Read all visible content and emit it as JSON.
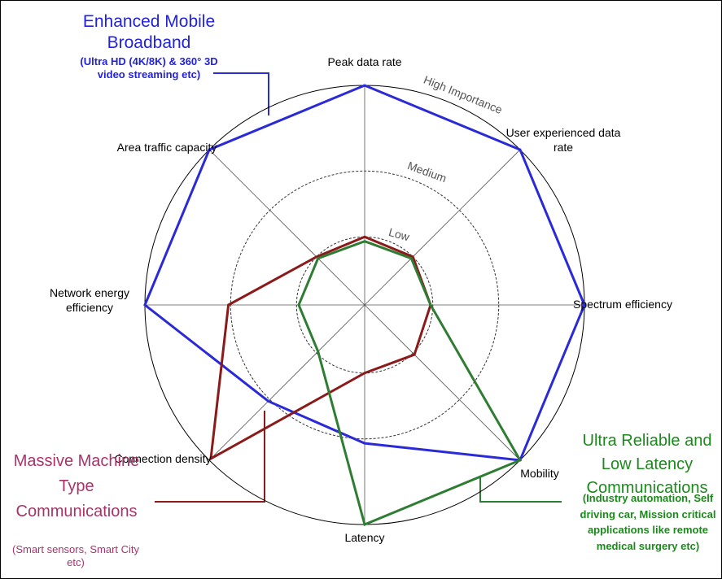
{
  "chart_data": {
    "type": "radar",
    "categories": [
      "Peak data rate",
      "User experienced data rate",
      "Spectrum efficiency",
      "Mobility",
      "Latency",
      "Connection density",
      "Network energy efficiency",
      "Area traffic capacity"
    ],
    "rlim": [
      0,
      100
    ],
    "rticks": [
      {
        "value": 31,
        "label": "Low"
      },
      {
        "value": 61,
        "label": "Medium"
      },
      {
        "value": 100,
        "label": "High Importance"
      }
    ],
    "series": [
      {
        "name": "Enhanced Mobile Broadband",
        "description": "(Ultra HD (4K/8K) & 360° 3D video streaming etc)",
        "color": "#2a2ad8",
        "values": [
          100,
          100,
          100,
          100,
          63,
          62,
          100,
          100
        ]
      },
      {
        "name": "Massive Machine Type Communications",
        "description": "(Smart sensors, Smart City etc)",
        "color": "#8b1a1a",
        "values": [
          31,
          31,
          30,
          32,
          31,
          99,
          62,
          31
        ]
      },
      {
        "name": "Ultra Reliable and Low Latency Communications",
        "description": "(Industry automation, Self driving car, Mission critical applications like remote medical surgery etc)",
        "color": "#2e7d32",
        "values": [
          29,
          30,
          30,
          100,
          100,
          30,
          30,
          30
        ]
      }
    ]
  }
}
